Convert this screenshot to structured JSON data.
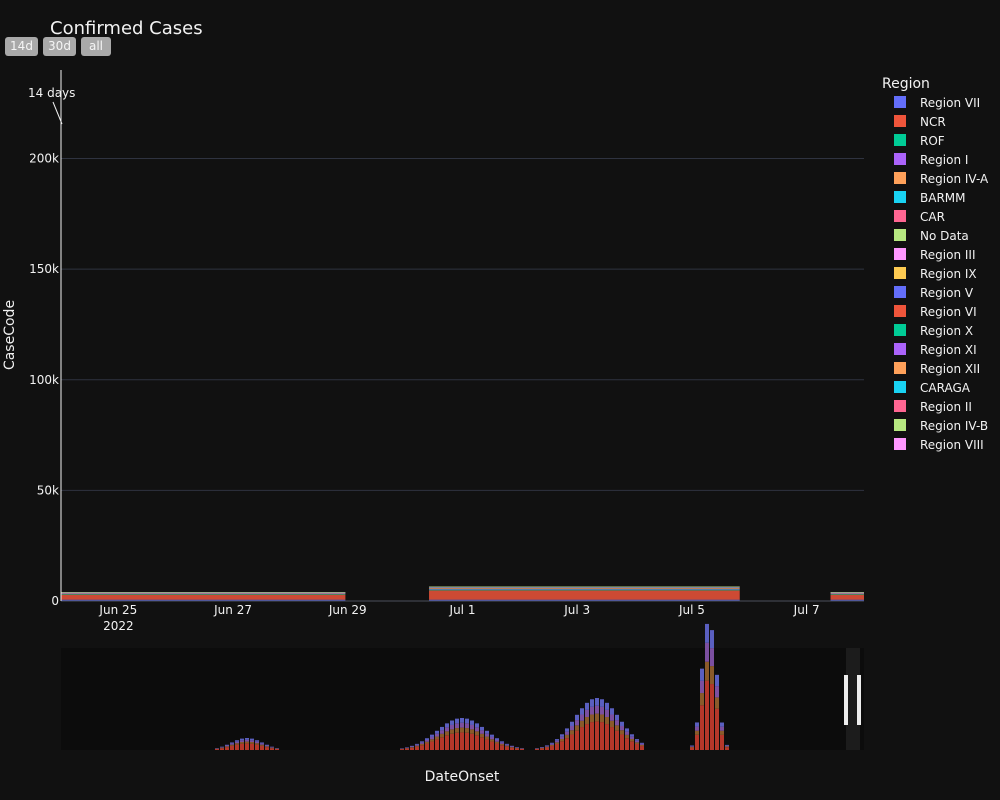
{
  "chart_data": {
    "type": "bar",
    "title": "Confirmed Cases",
    "xlabel": "DateOnset",
    "ylabel": "CaseCode",
    "ylim": [
      0,
      240000
    ],
    "y_ticks": [
      "0",
      "50k",
      "100k",
      "150k",
      "200k"
    ],
    "y_tick_values": [
      0,
      50000,
      100000,
      150000,
      200000
    ],
    "x_tick_labels": [
      "Jun 25",
      "Jun 27",
      "Jun 29",
      "Jul 1",
      "Jul 3",
      "Jul 5",
      "Jul 7"
    ],
    "x_tick_dates": [
      "2022-06-25",
      "2022-06-27",
      "2022-06-29",
      "2022-07-01",
      "2022-07-03",
      "2022-07-05",
      "2022-07-07"
    ],
    "x_year_label": "2022",
    "x_range": [
      "2022-06-24",
      "2022-07-08"
    ],
    "range_buttons": [
      "14d",
      "30d",
      "all"
    ],
    "annotation": "14 days",
    "legend_title": "Region",
    "legend_position": "right",
    "grid": true,
    "stacks": [
      {
        "start": "2022-06-24",
        "end": "2022-06-28T23:00",
        "values": [
          600,
          2300,
          300,
          200,
          300,
          100,
          150,
          100
        ]
      },
      {
        "start": "2022-06-30T10:00",
        "end": "2022-07-05T20:00",
        "values": [
          600,
          4200,
          400,
          300,
          400,
          200,
          300,
          200
        ]
      },
      {
        "start": "2022-07-07T10:00",
        "end": "2022-07-08",
        "values": [
          600,
          2300,
          300,
          200,
          300,
          100,
          150,
          100
        ]
      }
    ],
    "series": [
      {
        "name": "Region VII",
        "color": "#636efa"
      },
      {
        "name": "NCR",
        "color": "#EF553B"
      },
      {
        "name": "ROF",
        "color": "#00cc96"
      },
      {
        "name": "Region I",
        "color": "#ab63fa"
      },
      {
        "name": "Region IV-A",
        "color": "#FFA15A"
      },
      {
        "name": "BARMM",
        "color": "#19d3f3"
      },
      {
        "name": "CAR",
        "color": "#FF6692"
      },
      {
        "name": "No Data",
        "color": "#B6E880"
      },
      {
        "name": "Region III",
        "color": "#FF97FF"
      },
      {
        "name": "Region IX",
        "color": "#FECB52"
      },
      {
        "name": "Region V",
        "color": "#636efa"
      },
      {
        "name": "Region VI",
        "color": "#EF553B"
      },
      {
        "name": "Region X",
        "color": "#00cc96"
      },
      {
        "name": "Region XI",
        "color": "#ab63fa"
      },
      {
        "name": "Region XII",
        "color": "#FFA15A"
      },
      {
        "name": "CARAGA",
        "color": "#19d3f3"
      },
      {
        "name": "Region II",
        "color": "#FF6692"
      },
      {
        "name": "Region IV-B",
        "color": "#B6E880"
      },
      {
        "name": "Region VIII",
        "color": "#FF97FF"
      }
    ],
    "overview_profile": [
      0,
      0,
      0,
      0,
      0,
      0,
      0,
      0,
      0,
      0,
      0,
      0,
      0,
      0,
      0,
      0,
      0,
      0,
      0,
      0,
      0,
      0,
      0,
      0,
      0,
      0,
      0,
      0,
      0,
      0,
      0,
      0,
      0,
      0,
      0,
      0,
      0,
      0,
      0,
      0,
      0,
      0,
      0,
      0,
      0,
      0,
      0,
      0,
      0,
      0,
      0,
      0,
      0,
      0,
      0,
      0,
      0,
      0,
      0,
      0,
      0,
      0,
      0,
      0,
      0,
      0,
      0,
      0,
      0,
      0,
      0,
      0,
      0,
      0,
      0,
      0,
      0,
      0,
      0,
      0,
      0,
      0,
      0,
      0,
      0,
      0,
      0,
      0,
      0,
      0,
      0,
      0,
      0,
      0,
      0,
      0,
      0,
      0,
      0,
      0,
      0,
      0,
      0,
      0,
      0,
      0,
      0,
      0,
      0,
      0,
      0,
      0,
      0,
      0,
      0,
      0,
      0,
      0,
      0,
      0,
      0,
      0,
      0,
      0,
      0,
      0,
      0,
      0,
      0,
      0,
      0,
      0,
      0,
      0,
      0,
      0,
      0,
      0,
      0,
      0,
      0,
      0,
      0,
      0,
      0,
      0,
      0,
      0,
      0,
      0,
      0,
      0,
      0,
      0,
      0,
      0,
      0,
      0,
      0,
      0,
      0,
      0,
      0,
      0,
      0,
      0,
      0,
      0,
      0,
      0,
      0,
      0,
      0,
      0,
      0,
      0,
      0,
      0,
      0,
      0,
      0,
      0,
      0,
      0,
      0,
      0,
      0,
      0,
      0,
      0,
      0,
      0,
      0,
      0,
      0,
      0,
      0,
      0,
      0,
      0,
      0,
      0,
      0,
      0,
      0,
      0,
      0,
      0,
      0,
      0
    ]
  }
}
